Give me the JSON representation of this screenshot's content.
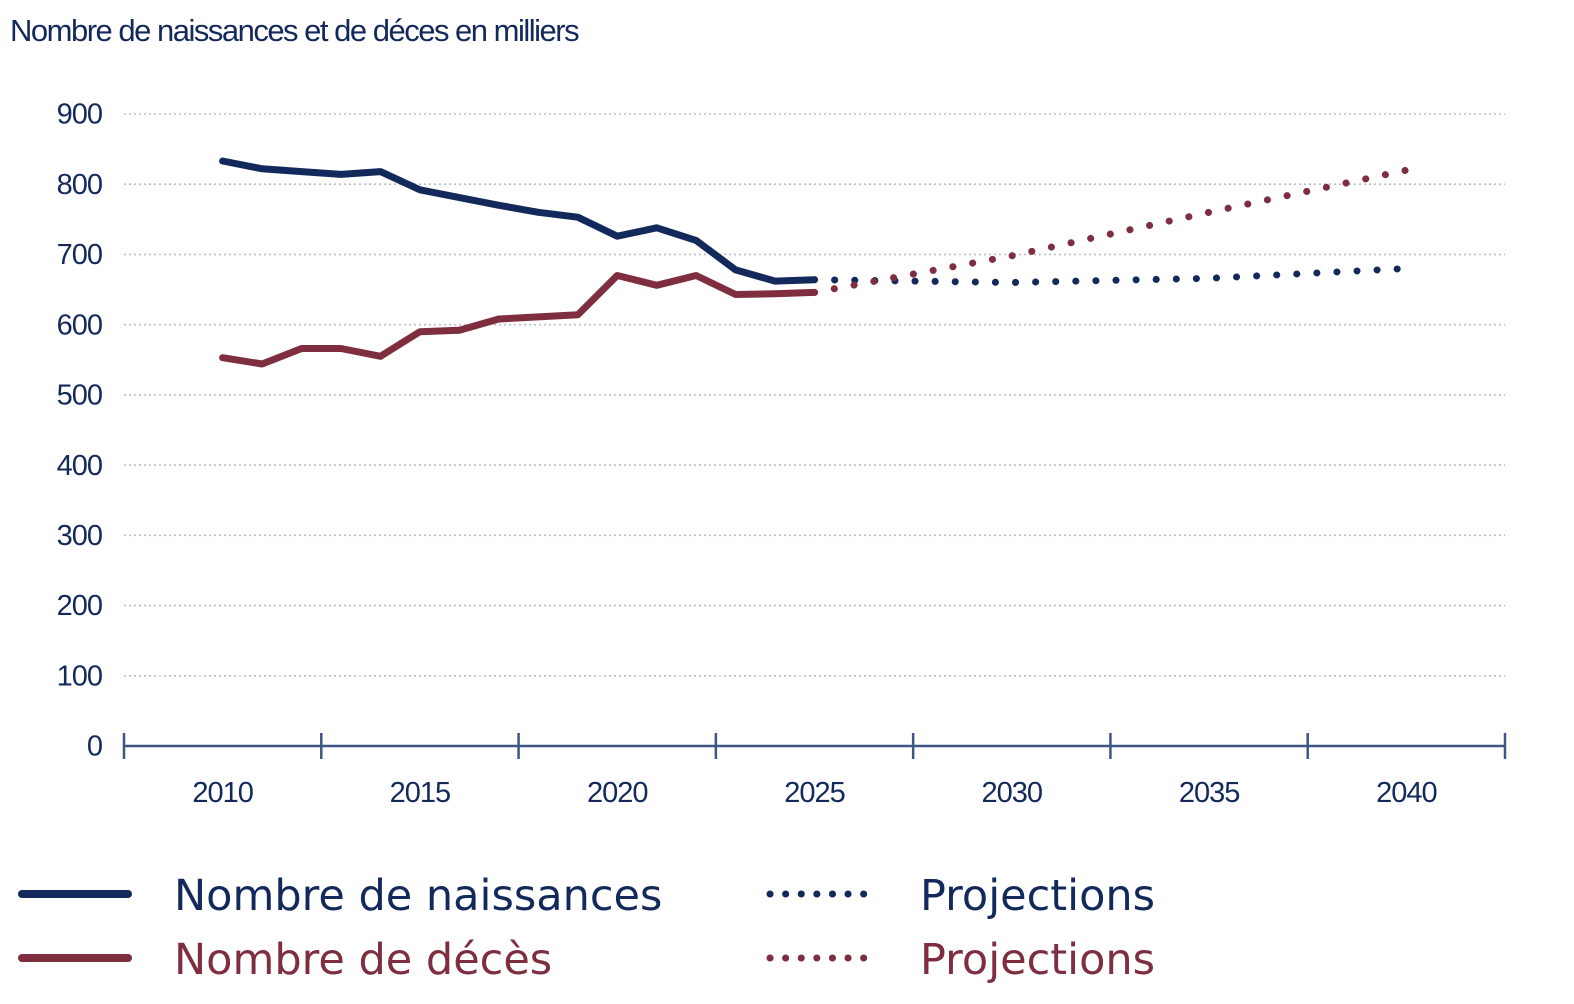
{
  "colors": {
    "navy": "#13295b",
    "maroon": "#7e2e3f",
    "grid": "#b9bec8"
  },
  "chart_data": {
    "type": "line",
    "title": "Nombre de naissances et de déces en milliers",
    "xlabel": "",
    "ylabel": "Nombre de naissances et de déces en milliers",
    "ylim": [
      0,
      900
    ],
    "yticks": [
      "0",
      "100",
      "200",
      "300",
      "400",
      "500",
      "600",
      "700",
      "800",
      "900"
    ],
    "xlim": [
      2007.5,
      2042.5
    ],
    "xticks": [
      "2010",
      "2015",
      "2020",
      "2025",
      "2030",
      "2035",
      "2040"
    ],
    "grid": true,
    "legend_position": "bottom",
    "series": [
      {
        "name": "Nombre de naissances",
        "color": "#13295b",
        "style": "solid",
        "x": [
          2010,
          2011,
          2012,
          2013,
          2014,
          2015,
          2016,
          2017,
          2018,
          2019,
          2020,
          2021,
          2022,
          2023,
          2024,
          2025
        ],
        "values": [
          833,
          822,
          818,
          814,
          818,
          792,
          781,
          770,
          760,
          753,
          726,
          738,
          720,
          678,
          662,
          664
        ]
      },
      {
        "name": "Nombre de décès",
        "color": "#7e2e3f",
        "style": "solid",
        "x": [
          2010,
          2011,
          2012,
          2013,
          2014,
          2015,
          2016,
          2017,
          2018,
          2019,
          2020,
          2021,
          2022,
          2023,
          2024,
          2025
        ],
        "values": [
          553,
          544,
          566,
          566,
          555,
          590,
          592,
          608,
          611,
          614,
          670,
          656,
          670,
          643,
          644,
          646
        ]
      },
      {
        "name": "Projections",
        "color": "#13295b",
        "style": "dotted",
        "x": [
          2025,
          2030,
          2035,
          2040
        ],
        "values": [
          664,
          660,
          666,
          680
        ]
      },
      {
        "name": "Projections",
        "color": "#7e2e3f",
        "style": "dotted",
        "x": [
          2025,
          2030,
          2035,
          2040
        ],
        "values": [
          646,
          698,
          760,
          820
        ]
      }
    ]
  },
  "legend": [
    {
      "label": "Nombre de naissances",
      "color": "#13295b",
      "style": "solid"
    },
    {
      "label": "Projections",
      "color": "#13295b",
      "style": "dotted"
    },
    {
      "label": "Nombre de décès",
      "color": "#7e2e3f",
      "style": "solid"
    },
    {
      "label": "Projections",
      "color": "#7e2e3f",
      "style": "dotted"
    }
  ]
}
